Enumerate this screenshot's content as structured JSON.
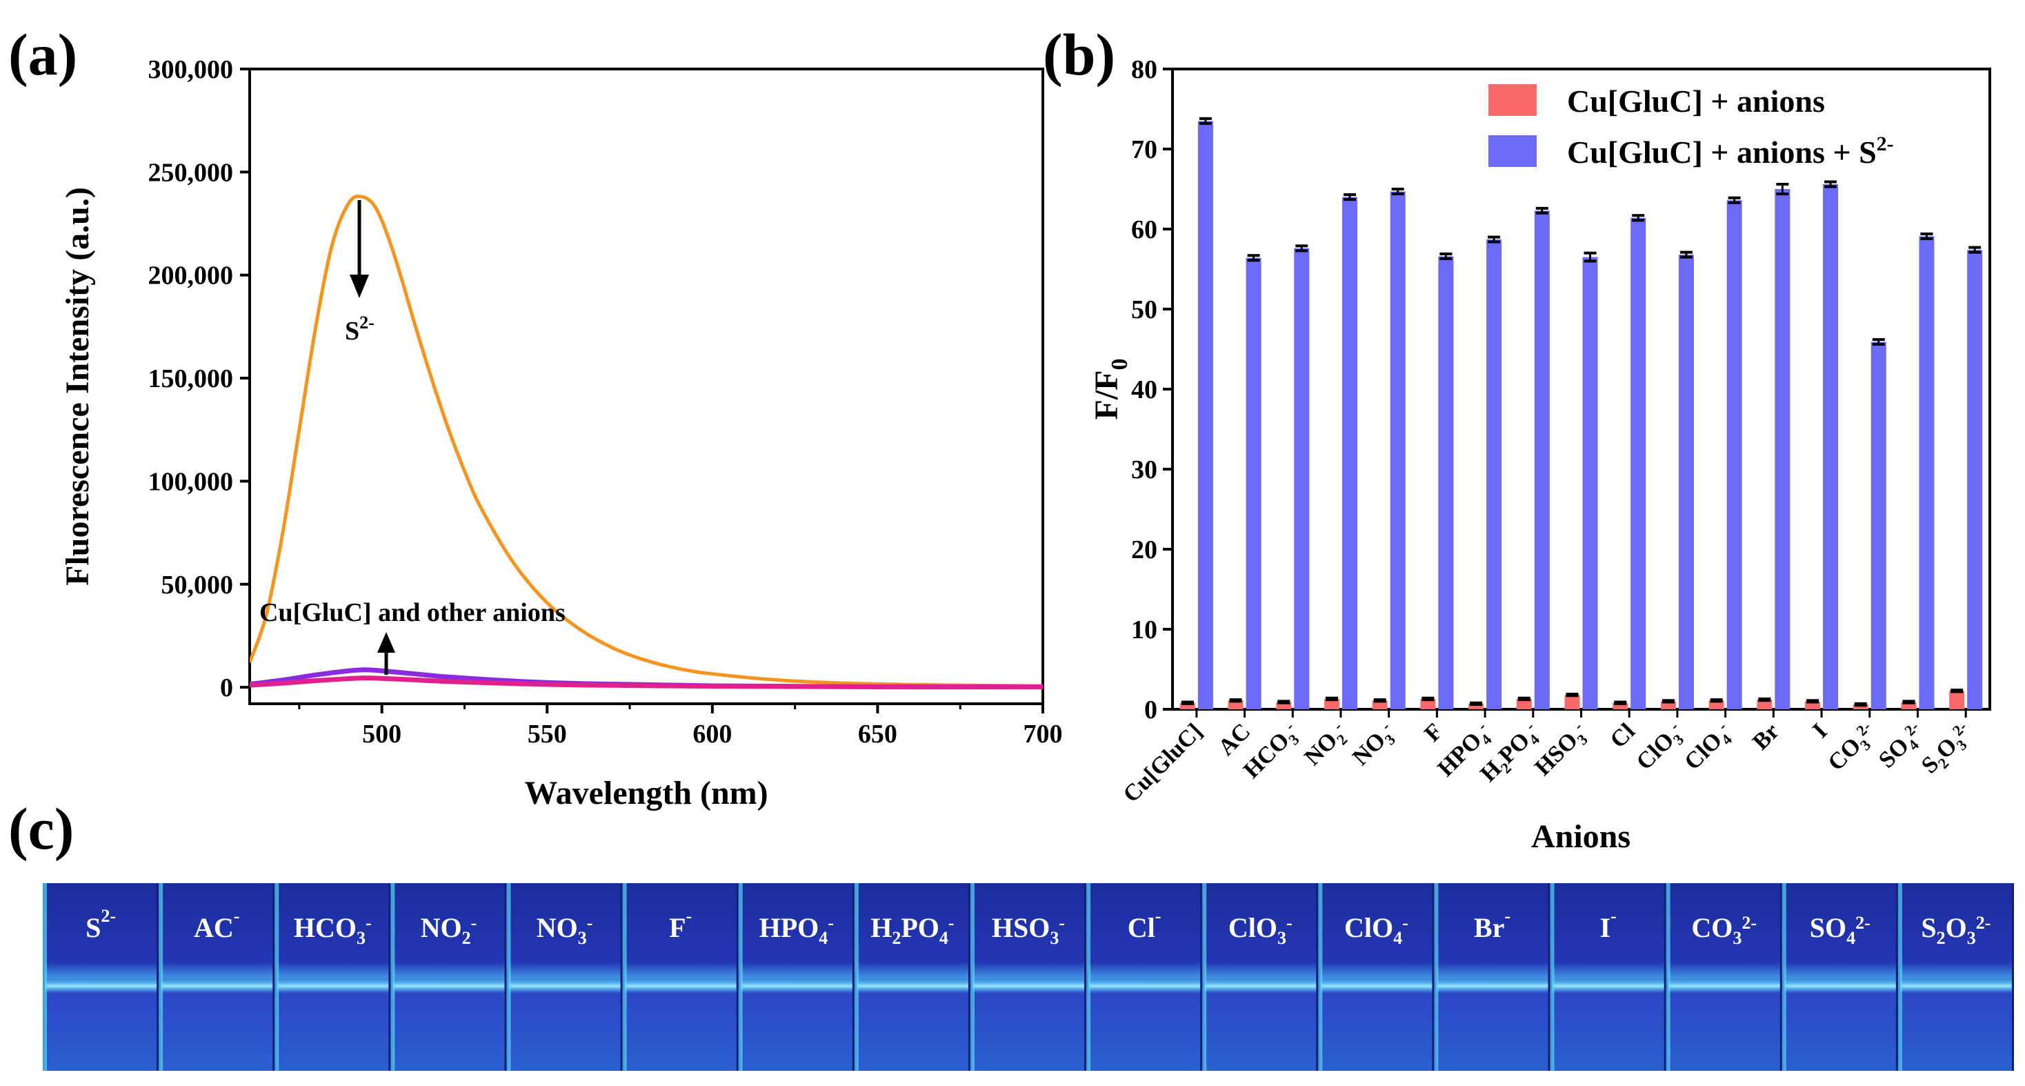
{
  "colors": {
    "orange": "#f7941d",
    "purple": "#8a2be2",
    "magenta": "#e0208c",
    "bar_red": "#f86a6a",
    "bar_blue": "#6b6bf8",
    "vial_bg": "#1c2fa8",
    "vial_glow": "#39c6f2"
  },
  "panels": {
    "a_label": "(a)",
    "b_label": "(b)",
    "c_label": "(c)"
  },
  "chart_data": [
    {
      "id": "a",
      "type": "line",
      "title": "",
      "xlabel": "Wavelength (nm)",
      "ylabel": "Fluorescence Intensity (a.u.)",
      "xlim": [
        460,
        700
      ],
      "ylim": [
        -8000,
        300000
      ],
      "xticks": [
        500,
        550,
        600,
        650,
        700
      ],
      "xtick_labels": [
        "500",
        "550",
        "600",
        "650",
        "700"
      ],
      "yticks": [
        0,
        50000,
        100000,
        150000,
        200000,
        250000,
        300000
      ],
      "ytick_labels": [
        "0",
        "50,000",
        "100,000",
        "150,000",
        "200,000",
        "250,000",
        "300,000"
      ],
      "annotations": {
        "s2_base": "S",
        "s2_sup": "2-",
        "others": "Cu[GluC] and other anions"
      },
      "series": [
        {
          "name": "S2-",
          "color": "#f7941d",
          "x": [
            460,
            465,
            470,
            475,
            480,
            485,
            490,
            494,
            498,
            502,
            506,
            510,
            515,
            520,
            525,
            530,
            540,
            550,
            560,
            570,
            580,
            590,
            600,
            620,
            640,
            660,
            680,
            700
          ],
          "y": [
            12000,
            35000,
            75000,
            125000,
            175000,
            215000,
            235000,
            238000,
            233000,
            218000,
            198000,
            176000,
            150000,
            126000,
            105000,
            87000,
            60000,
            41000,
            28000,
            19000,
            13000,
            9000,
            6500,
            3500,
            2000,
            1300,
            900,
            600
          ]
        },
        {
          "name": "Cu[GluC]",
          "color": "#8a2be2",
          "x": [
            460,
            470,
            480,
            490,
            495,
            500,
            510,
            520,
            540,
            560,
            600,
            650,
            700
          ],
          "y": [
            1500,
            3500,
            6000,
            8000,
            8500,
            8000,
            6500,
            5000,
            3000,
            1800,
            700,
            300,
            200
          ]
        },
        {
          "name": "other anions",
          "color": "#e0208c",
          "x": [
            460,
            470,
            480,
            490,
            495,
            500,
            510,
            520,
            540,
            560,
            600,
            650,
            700
          ],
          "y": [
            1000,
            2000,
            3200,
            4200,
            4500,
            4300,
            3600,
            2800,
            1800,
            1100,
            500,
            250,
            150
          ]
        }
      ]
    },
    {
      "id": "b",
      "type": "bar",
      "title": "",
      "xlabel": "Anions",
      "ylabel_base": "F/F",
      "ylabel_sub": "0",
      "ylim": [
        0,
        80
      ],
      "yticks": [
        0,
        10,
        20,
        30,
        40,
        50,
        60,
        70,
        80
      ],
      "ytick_labels": [
        "0",
        "10",
        "20",
        "30",
        "40",
        "50",
        "60",
        "70",
        "80"
      ],
      "categories": [
        "Cu[GluC]",
        "AC",
        "HCO3-",
        "NO2-",
        "NO3-",
        "F",
        "HPO4-",
        "H2PO4-",
        "HSO3-",
        "Cl",
        "ClO3-",
        "ClO4-",
        "Br",
        "I",
        "CO32-",
        "SO42-",
        "S2O32-"
      ],
      "category_labels": [
        [
          {
            "t": "Cu[GluC]"
          }
        ],
        [
          {
            "t": "AC"
          }
        ],
        [
          {
            "t": "HCO"
          },
          {
            "t": "3",
            "s": "sub"
          },
          {
            "t": "-",
            "s": "sup"
          }
        ],
        [
          {
            "t": "NO"
          },
          {
            "t": "2",
            "s": "sub"
          },
          {
            "t": "-",
            "s": "sup"
          }
        ],
        [
          {
            "t": "NO"
          },
          {
            "t": "3",
            "s": "sub"
          },
          {
            "t": "-",
            "s": "sup"
          }
        ],
        [
          {
            "t": "F"
          }
        ],
        [
          {
            "t": "HPO"
          },
          {
            "t": "4",
            "s": "sub"
          },
          {
            "t": "-",
            "s": "sup"
          }
        ],
        [
          {
            "t": "H"
          },
          {
            "t": "2",
            "s": "sub"
          },
          {
            "t": "PO"
          },
          {
            "t": "4",
            "s": "sub"
          },
          {
            "t": "-",
            "s": "sup"
          }
        ],
        [
          {
            "t": "HSO"
          },
          {
            "t": "3",
            "s": "sub"
          },
          {
            "t": "-",
            "s": "sup"
          }
        ],
        [
          {
            "t": "Cl"
          }
        ],
        [
          {
            "t": "ClO"
          },
          {
            "t": "3",
            "s": "sub"
          },
          {
            "t": "-",
            "s": "sup"
          }
        ],
        [
          {
            "t": "ClO"
          },
          {
            "t": "4",
            "s": "sub"
          },
          {
            "t": "-",
            "s": "sup"
          }
        ],
        [
          {
            "t": "Br"
          }
        ],
        [
          {
            "t": "I"
          }
        ],
        [
          {
            "t": "CO"
          },
          {
            "t": "3",
            "s": "sub"
          },
          {
            "t": "2-",
            "s": "sup"
          }
        ],
        [
          {
            "t": "SO"
          },
          {
            "t": "4",
            "s": "sub"
          },
          {
            "t": "2-",
            "s": "sup"
          }
        ],
        [
          {
            "t": "S"
          },
          {
            "t": "2",
            "s": "sub"
          },
          {
            "t": "O"
          },
          {
            "t": "3",
            "s": "sub"
          },
          {
            "t": "2-",
            "s": "sup"
          }
        ]
      ],
      "legend_position": "top-right",
      "legend": [
        {
          "label": "Cu[GluC] + anions"
        },
        {
          "label": "Cu[GluC] + anions + S",
          "sup": "2-"
        }
      ],
      "series": [
        {
          "name": "Cu[GluC] + anions",
          "color": "#f86a6a",
          "values": [
            0.8,
            1.1,
            0.9,
            1.3,
            1.1,
            1.3,
            0.7,
            1.3,
            1.8,
            0.8,
            1.0,
            1.1,
            1.2,
            1.0,
            0.6,
            0.9,
            2.3
          ],
          "errors": [
            0.1,
            0.1,
            0.1,
            0.1,
            0.1,
            0.1,
            0.1,
            0.1,
            0.1,
            0.1,
            0.1,
            0.1,
            0.1,
            0.1,
            0.1,
            0.1,
            0.1
          ]
        },
        {
          "name": "Cu[GluC] + anions + S2-",
          "color": "#6b6bf8",
          "values": [
            73.5,
            56.4,
            57.6,
            64.0,
            64.7,
            56.6,
            58.7,
            62.3,
            56.5,
            61.4,
            56.8,
            63.6,
            65.0,
            65.6,
            45.9,
            59.1,
            57.4
          ],
          "errors": [
            0.3,
            0.3,
            0.3,
            0.3,
            0.3,
            0.3,
            0.3,
            0.3,
            0.5,
            0.3,
            0.3,
            0.3,
            0.6,
            0.3,
            0.3,
            0.3,
            0.3
          ]
        }
      ]
    }
  ],
  "photo": {
    "vials": [
      [
        {
          "t": "S"
        },
        {
          "t": "2-",
          "s": "sup"
        }
      ],
      [
        {
          "t": "AC"
        },
        {
          "t": "-",
          "s": "sup"
        }
      ],
      [
        {
          "t": "HCO"
        },
        {
          "t": "3",
          "s": "sub"
        },
        {
          "t": "-",
          "s": "sup"
        }
      ],
      [
        {
          "t": "NO"
        },
        {
          "t": "2",
          "s": "sub"
        },
        {
          "t": "-",
          "s": "sup"
        }
      ],
      [
        {
          "t": "NO"
        },
        {
          "t": "3",
          "s": "sub"
        },
        {
          "t": "-",
          "s": "sup"
        }
      ],
      [
        {
          "t": "F"
        },
        {
          "t": "-",
          "s": "sup"
        }
      ],
      [
        {
          "t": "HPO"
        },
        {
          "t": "4",
          "s": "sub"
        },
        {
          "t": "-",
          "s": "sup"
        }
      ],
      [
        {
          "t": "H"
        },
        {
          "t": "2",
          "s": "sub"
        },
        {
          "t": "PO"
        },
        {
          "t": "4",
          "s": "sub"
        },
        {
          "t": "-",
          "s": "sup"
        }
      ],
      [
        {
          "t": "HSO"
        },
        {
          "t": "3",
          "s": "sub"
        },
        {
          "t": "-",
          "s": "sup"
        }
      ],
      [
        {
          "t": "Cl"
        },
        {
          "t": "-",
          "s": "sup"
        }
      ],
      [
        {
          "t": "ClO"
        },
        {
          "t": "3",
          "s": "sub"
        },
        {
          "t": "-",
          "s": "sup"
        }
      ],
      [
        {
          "t": "ClO"
        },
        {
          "t": "4",
          "s": "sub"
        },
        {
          "t": "-",
          "s": "sup"
        }
      ],
      [
        {
          "t": "Br"
        },
        {
          "t": "-",
          "s": "sup"
        }
      ],
      [
        {
          "t": "I"
        },
        {
          "t": "-",
          "s": "sup"
        }
      ],
      [
        {
          "t": "CO"
        },
        {
          "t": "3",
          "s": "sub"
        },
        {
          "t": "2-",
          "s": "sup"
        }
      ],
      [
        {
          "t": "SO"
        },
        {
          "t": "4",
          "s": "sub"
        },
        {
          "t": "2-",
          "s": "sup"
        }
      ],
      [
        {
          "t": "S"
        },
        {
          "t": "2",
          "s": "sub"
        },
        {
          "t": "O"
        },
        {
          "t": "3",
          "s": "sub"
        },
        {
          "t": "2-",
          "s": "sup"
        }
      ]
    ]
  }
}
